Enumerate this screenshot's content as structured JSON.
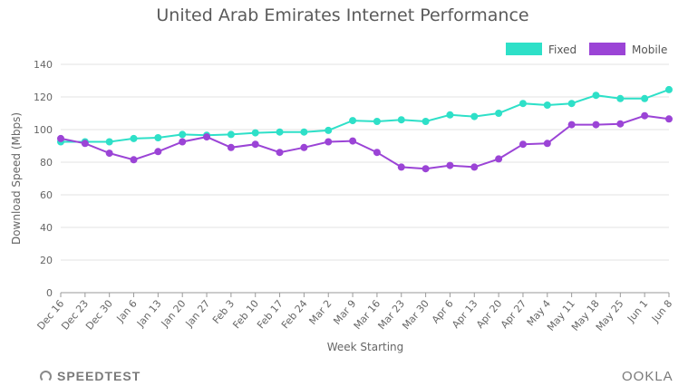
{
  "chart_data": {
    "type": "line",
    "title": "United Arab Emirates Internet Performance",
    "xlabel": "Week Starting",
    "ylabel": "Download Speed (Mbps)",
    "ylim": [
      0,
      140
    ],
    "yticks": [
      0,
      20,
      40,
      60,
      80,
      100,
      120,
      140
    ],
    "grid": true,
    "legend_position": "top-right",
    "categories": [
      "Dec 16",
      "Dec 23",
      "Dec 30",
      "Jan 6",
      "Jan 13",
      "Jan 20",
      "Jan 27",
      "Feb 3",
      "Feb 10",
      "Feb 17",
      "Feb 24",
      "Mar 2",
      "Mar 9",
      "Mar 16",
      "Mar 23",
      "Mar 30",
      "Apr 6",
      "Apr 13",
      "Apr 20",
      "Apr 27",
      "May 4",
      "May 11",
      "May 18",
      "May 25",
      "Jun 1",
      "Jun 8"
    ],
    "series": [
      {
        "name": "Fixed",
        "color": "#2ee0c8",
        "values": [
          92.5,
          92.5,
          92.5,
          94.5,
          95,
          97,
          96.5,
          97,
          98,
          98.5,
          98.5,
          99.5,
          105.5,
          105,
          106,
          105,
          109,
          108,
          110,
          116,
          115,
          116,
          121,
          119,
          119,
          124.5
        ]
      },
      {
        "name": "Mobile",
        "color": "#9b44d6",
        "values": [
          94.5,
          91.5,
          85.5,
          81.5,
          86.5,
          92.5,
          95.5,
          89,
          91,
          86,
          89,
          92.5,
          93,
          86,
          77,
          76,
          78,
          77,
          82,
          91,
          91.5,
          103,
          103,
          103.5,
          108.5,
          106.5
        ]
      }
    ]
  },
  "footer": {
    "brand_left": "SPEEDTEST",
    "brand_right": "OOKLA"
  }
}
